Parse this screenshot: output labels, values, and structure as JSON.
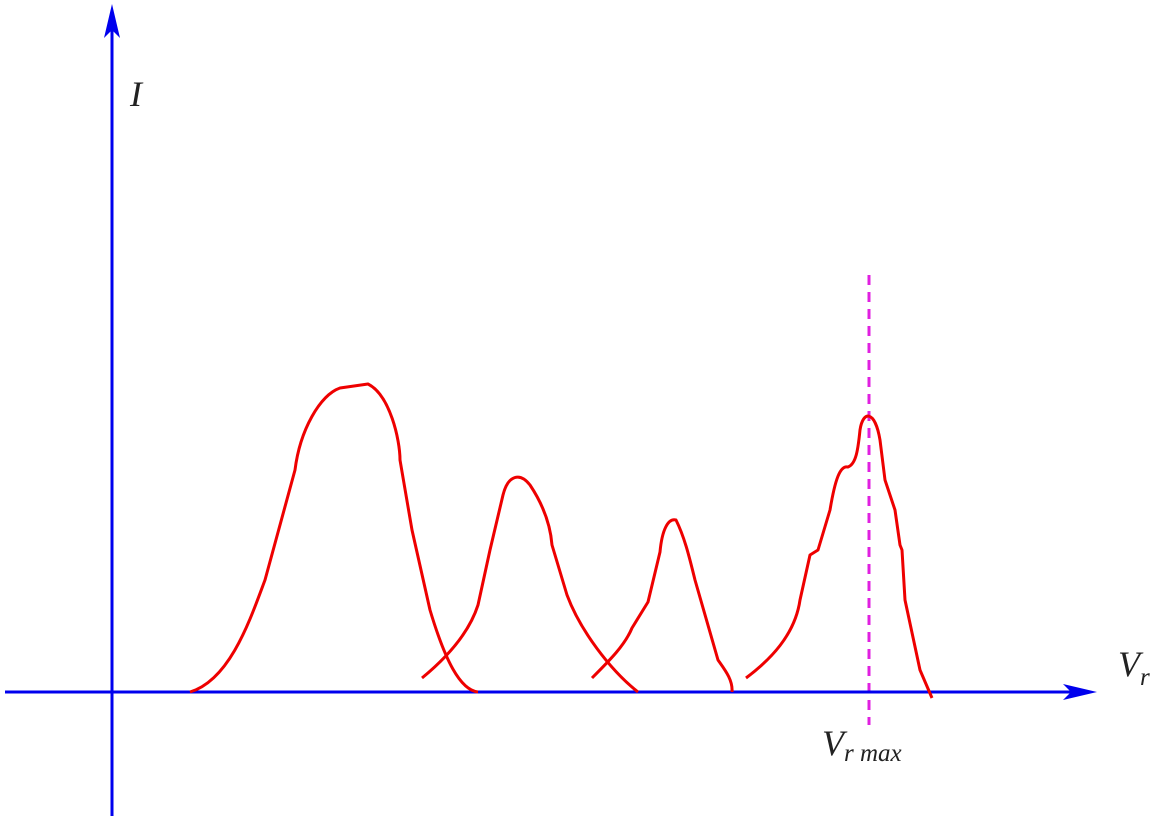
{
  "labels": {
    "y_axis": "I",
    "x_axis": {
      "main": "V",
      "sub": "r"
    },
    "marker": {
      "main": "V",
      "sub": "r max"
    }
  }
}
